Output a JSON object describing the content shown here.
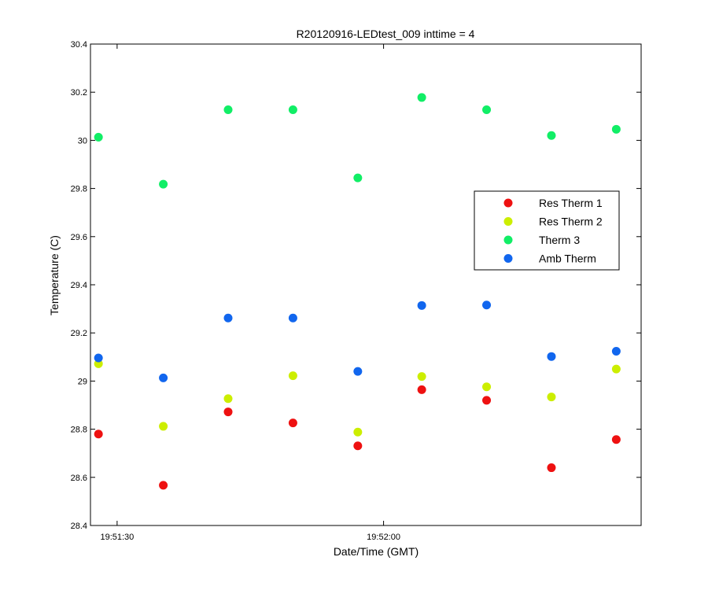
{
  "chart_data": {
    "type": "scatter",
    "title": "R20120916-LEDtest_009 inttime = 4",
    "xlabel": "Date/Time (GMT)",
    "ylabel": "Temperature (C)",
    "x_unit": "time of day (GMT)",
    "xlim": [
      "19:51:27",
      "19:52:29"
    ],
    "ylim": [
      28.4,
      30.4
    ],
    "x_ticks": [
      {
        "value": "19:51:30",
        "label": "19:51:30"
      },
      {
        "value": "19:52:00",
        "label": "19:52:00"
      }
    ],
    "y_ticks": [
      "28.4",
      "28.6",
      "28.8",
      "29",
      "29.2",
      "29.4",
      "29.6",
      "29.8",
      "30",
      "30.2",
      "30.4"
    ],
    "x": [
      "19:51:27.9",
      "19:51:35.2",
      "19:51:42.5",
      "19:51:49.8",
      "19:51:57.1",
      "19:52:04.3",
      "19:52:11.6",
      "19:52:18.9",
      "19:52:26.2"
    ],
    "grid": false,
    "legend_position": "right-center",
    "series": [
      {
        "name": "Res Therm 1",
        "color": "#ee1111",
        "values": [
          28.78,
          28.567,
          28.872,
          28.826,
          28.731,
          28.964,
          28.92,
          28.64,
          28.757
        ]
      },
      {
        "name": "Res Therm 2",
        "color": "#ccee00",
        "values": [
          29.072,
          28.812,
          28.927,
          29.022,
          28.788,
          29.019,
          28.976,
          28.934,
          29.05
        ]
      },
      {
        "name": "Therm 3",
        "color": "#11ee66",
        "values": [
          30.013,
          29.818,
          30.127,
          30.127,
          29.844,
          30.178,
          30.127,
          30.02,
          30.046
        ]
      },
      {
        "name": "Amb Therm",
        "color": "#1166ee",
        "values": [
          29.096,
          29.013,
          29.262,
          29.262,
          29.04,
          29.314,
          29.316,
          29.102,
          29.124
        ]
      }
    ]
  }
}
